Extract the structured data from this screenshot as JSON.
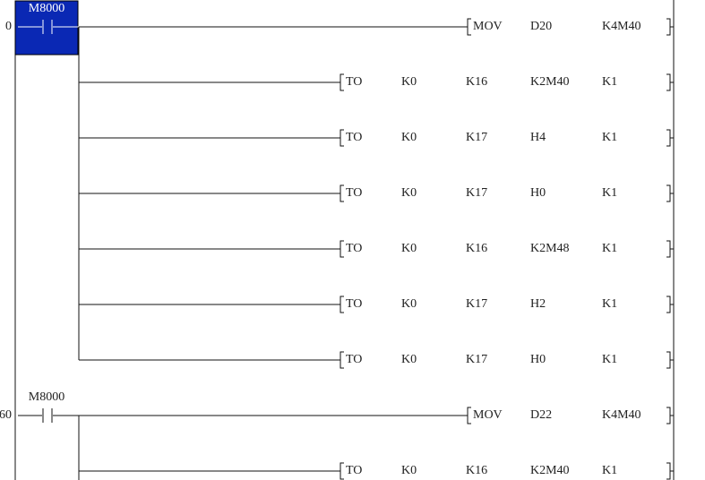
{
  "rungs": [
    {
      "step": "0",
      "contact": "M8000",
      "instructions": [
        [
          "MOV",
          "D20",
          "K4M40"
        ],
        [
          "TO",
          "K0",
          "K16",
          "K2M40",
          "K1"
        ],
        [
          "TO",
          "K0",
          "K17",
          "H4",
          "K1"
        ],
        [
          "TO",
          "K0",
          "K17",
          "H0",
          "K1"
        ],
        [
          "TO",
          "K0",
          "K16",
          "K2M48",
          "K1"
        ],
        [
          "TO",
          "K0",
          "K17",
          "H2",
          "K1"
        ],
        [
          "TO",
          "K0",
          "K17",
          "H0",
          "K1"
        ]
      ]
    },
    {
      "step": "60",
      "contact": "M8000",
      "instructions": [
        [
          "MOV",
          "D22",
          "K4M40"
        ],
        [
          "TO",
          "K0",
          "K16",
          "K2M40",
          "K1"
        ]
      ]
    }
  ]
}
